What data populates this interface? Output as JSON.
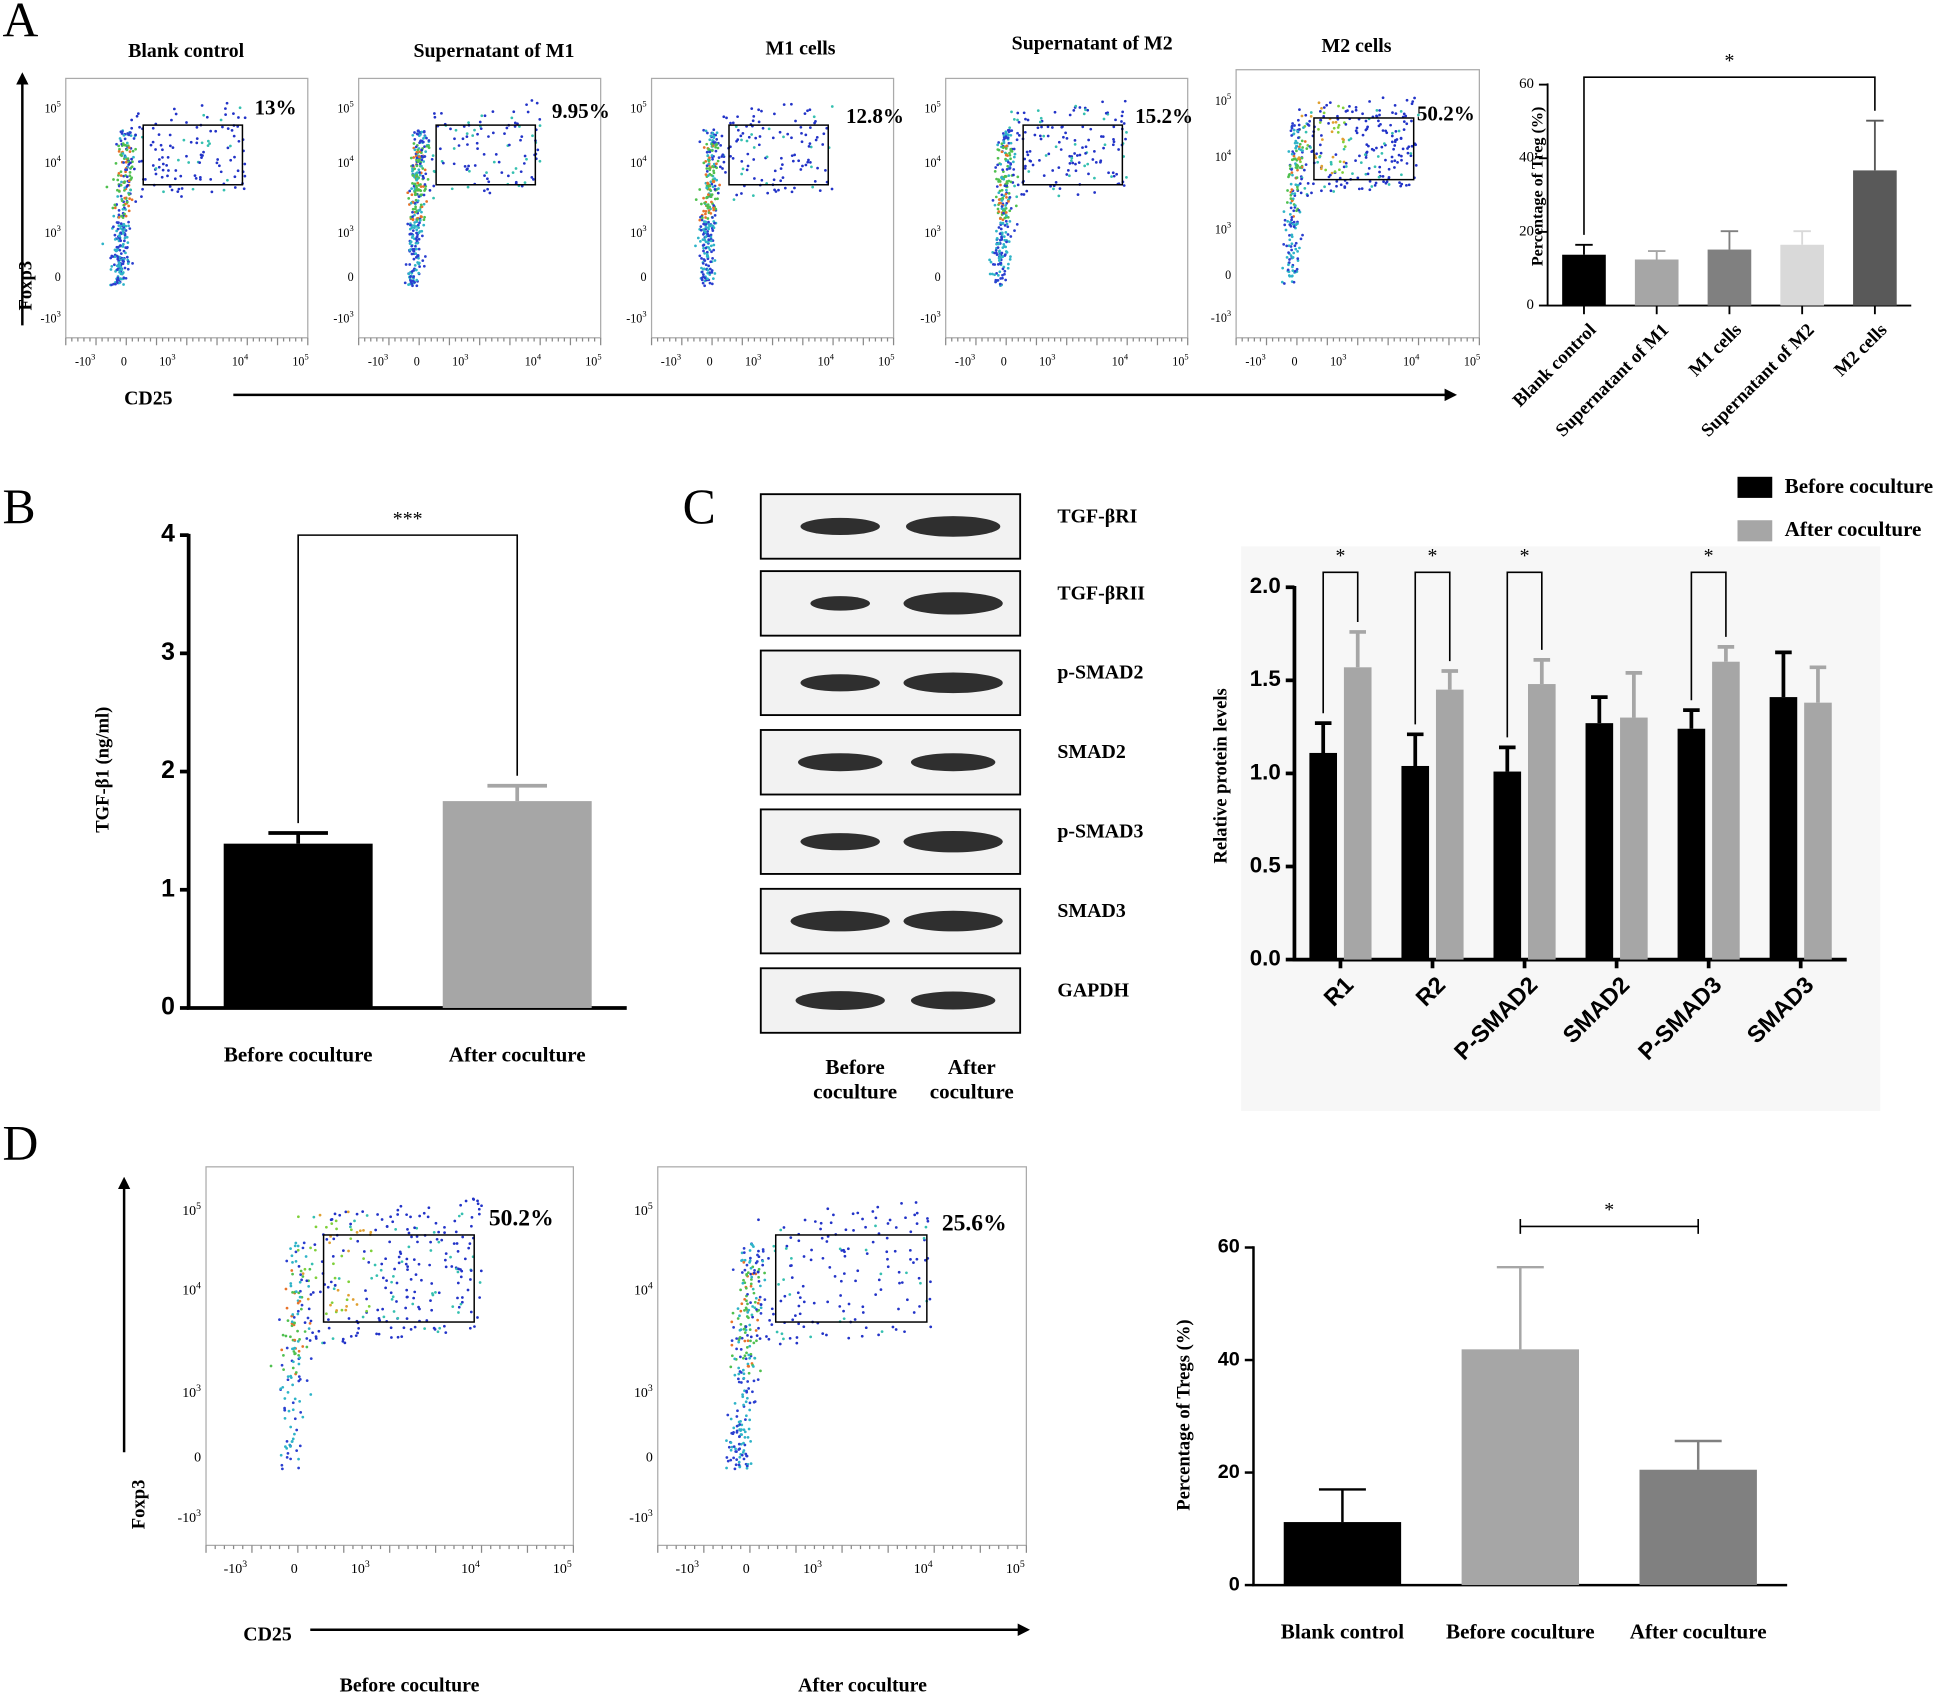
{
  "panel_labels": [
    "A",
    "B",
    "C",
    "D"
  ],
  "flow_ticks": {
    "y": [
      [
        "10",
        "5"
      ],
      [
        "10",
        "4"
      ],
      [
        "10",
        "3"
      ],
      [
        "0"
      ],
      [
        "-10",
        "3"
      ]
    ],
    "x": [
      [
        "-10",
        "3"
      ],
      [
        "0"
      ],
      [
        "10",
        "3"
      ],
      [
        "10",
        "4"
      ],
      [
        "10",
        "5"
      ]
    ]
  },
  "flow_a": {
    "titles": [
      "Blank control",
      "Supernatant of M1",
      "M1 cells",
      "Supernatant of M2",
      "M2 cells"
    ],
    "gates": [
      "13%",
      "9.95%",
      "12.8%",
      "15.2%",
      "50.2%"
    ],
    "ylabel": "Foxp3",
    "xlabel": "CD25"
  },
  "flow_d": {
    "gates": [
      "50.2%",
      "25.6%"
    ],
    "captions": [
      "Before coculture",
      "After coculture"
    ],
    "ylabel": "Foxp3",
    "xlabel": "CD25"
  },
  "blot": {
    "rows": [
      "TGF-βRI",
      "TGF-βRII",
      "p-SMAD2",
      "SMAD2",
      "p-SMAD3",
      "SMAD3",
      "GAPDH"
    ],
    "lanes": [
      "Before coculture",
      "After coculture"
    ]
  },
  "chart_data": [
    {
      "type": "bar",
      "ylabel": "Percentage of Treg (%)",
      "categories": [
        "Blank control",
        "Supernatant of M1",
        "M1 cells",
        "Supernatant of M2",
        "M2 cells"
      ],
      "values": [
        13.8,
        12.5,
        15.2,
        16.5,
        36.7
      ],
      "errors": [
        2.7,
        2.3,
        5,
        3.7,
        13.5
      ],
      "colors": [
        "#000000",
        "#a6a6a6",
        "#808080",
        "#d9d9d9",
        "#595959"
      ],
      "ylim": [
        0,
        60
      ],
      "yticks": [
        0,
        20,
        40,
        60
      ],
      "annotations": [
        {
          "label": "*",
          "between": [
            0,
            4
          ]
        }
      ]
    },
    {
      "type": "bar",
      "ylabel": "TGF-β1 (ng/ml)",
      "categories": [
        "Before coculture",
        "After coculture"
      ],
      "values": [
        1.39,
        1.75
      ],
      "errors": [
        0.09,
        0.13
      ],
      "colors": [
        "#000000",
        "#a6a6a6"
      ],
      "ylim": [
        0,
        4
      ],
      "yticks": [
        0,
        1,
        2,
        3,
        4
      ],
      "annotations": [
        {
          "label": "***",
          "between": [
            0,
            1
          ]
        }
      ]
    },
    {
      "type": "grouped_bar",
      "ylabel": "Relative protein levels",
      "categories": [
        "R1",
        "R2",
        "P-SMAD2",
        "SMAD2",
        "P-SMAD3",
        "SMAD3"
      ],
      "series": [
        {
          "name": "Before coculture",
          "color": "#000000",
          "values": [
            1.11,
            1.04,
            1.01,
            1.27,
            1.24,
            1.41
          ],
          "errors": [
            0.16,
            0.17,
            0.13,
            0.14,
            0.1,
            0.24
          ]
        },
        {
          "name": "After coculture",
          "color": "#a6a6a6",
          "values": [
            1.57,
            1.45,
            1.48,
            1.3,
            1.6,
            1.38
          ],
          "errors": [
            0.19,
            0.1,
            0.13,
            0.24,
            0.08,
            0.19
          ]
        }
      ],
      "ylim": [
        0,
        2
      ],
      "yticks": [
        {
          "value": 0,
          "label": "0.0"
        },
        0.5,
        {
          "value": 1,
          "label": "1.0"
        },
        1.5,
        {
          "value": 2,
          "label": "2.0"
        }
      ],
      "annotations": [
        {
          "label": "*",
          "category": 0
        },
        {
          "label": "*",
          "category": 1
        },
        {
          "label": "*",
          "category": 2
        },
        {
          "label": "*",
          "category": 4
        }
      ]
    },
    {
      "type": "bar",
      "ylabel": "Percentage of  Tregs (%)",
      "categories": [
        "Blank control",
        "Before coculture",
        "After coculture"
      ],
      "values": [
        11.2,
        41.9,
        20.5
      ],
      "errors": [
        5.8,
        14.6,
        5.1
      ],
      "colors": [
        "#000000",
        "#a6a6a6",
        "#808080"
      ],
      "ylim": [
        0,
        60
      ],
      "yticks": [
        0,
        20,
        40,
        60
      ],
      "annotations": [
        {
          "label": "*",
          "between": [
            1,
            2
          ]
        }
      ]
    }
  ]
}
